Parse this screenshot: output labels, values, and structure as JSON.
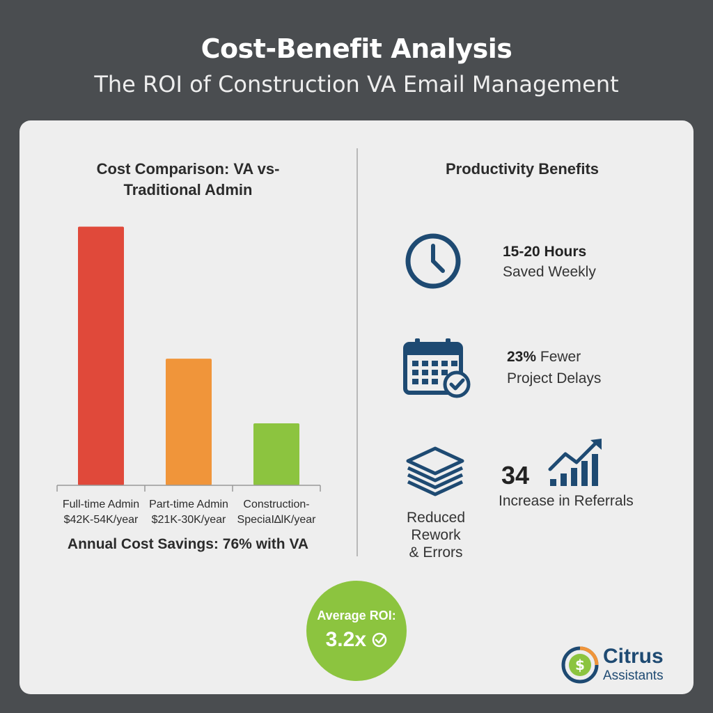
{
  "header": {
    "title": "Cost-Benefit Analysis",
    "subtitle": "The ROI of Construction VA Email Management"
  },
  "chart_data": {
    "type": "bar",
    "title": "Cost Comparison: VA vs- Traditional Admin",
    "categories": [
      "Full-time Admin",
      "Part-time Admin",
      "Construction-"
    ],
    "category_values_text": [
      "$42K-54K/year",
      "$21K-30K/year",
      "SpeciaI∆lK/year"
    ],
    "values": [
      48,
      23.5,
      11.5
    ],
    "colors": [
      "#e0493a",
      "#f0953a",
      "#8cc43f"
    ],
    "ylim": [
      0,
      50
    ],
    "grid": false,
    "xlabel": "",
    "ylabel": ""
  },
  "chart_title_line1": "Cost Comparison: VA vs-",
  "chart_title_line2": "Traditional Admin",
  "savings_text": "Annual Cost Savings: 76% with VA",
  "benefits": {
    "title": "Productivity Benefits",
    "hours_strong": "15-20 Hours",
    "hours_text": "Saved Weekly",
    "delays_strong": "23%",
    "delays_text1": " Fewer",
    "delays_text2": "Project Delays",
    "rework_line1": "Reduced",
    "rework_line2": "Rework",
    "rework_line3": "& Errors",
    "referrals_number": "34",
    "referrals_text": "Increase in Referrals"
  },
  "roi": {
    "label": "Average ROI:",
    "value": "3.2x"
  },
  "logo": {
    "name": "Citrus",
    "sub": "Assistants"
  },
  "icons": [
    "clock-icon",
    "calendar-check-icon",
    "stacked-layers-icon",
    "growth-chart-icon",
    "check-circle-icon",
    "dollar-logo-icon"
  ],
  "colors": {
    "accent": "#1e4a72",
    "green": "#8cc43f",
    "background": "#4a4d50",
    "card": "#eeeeee"
  }
}
